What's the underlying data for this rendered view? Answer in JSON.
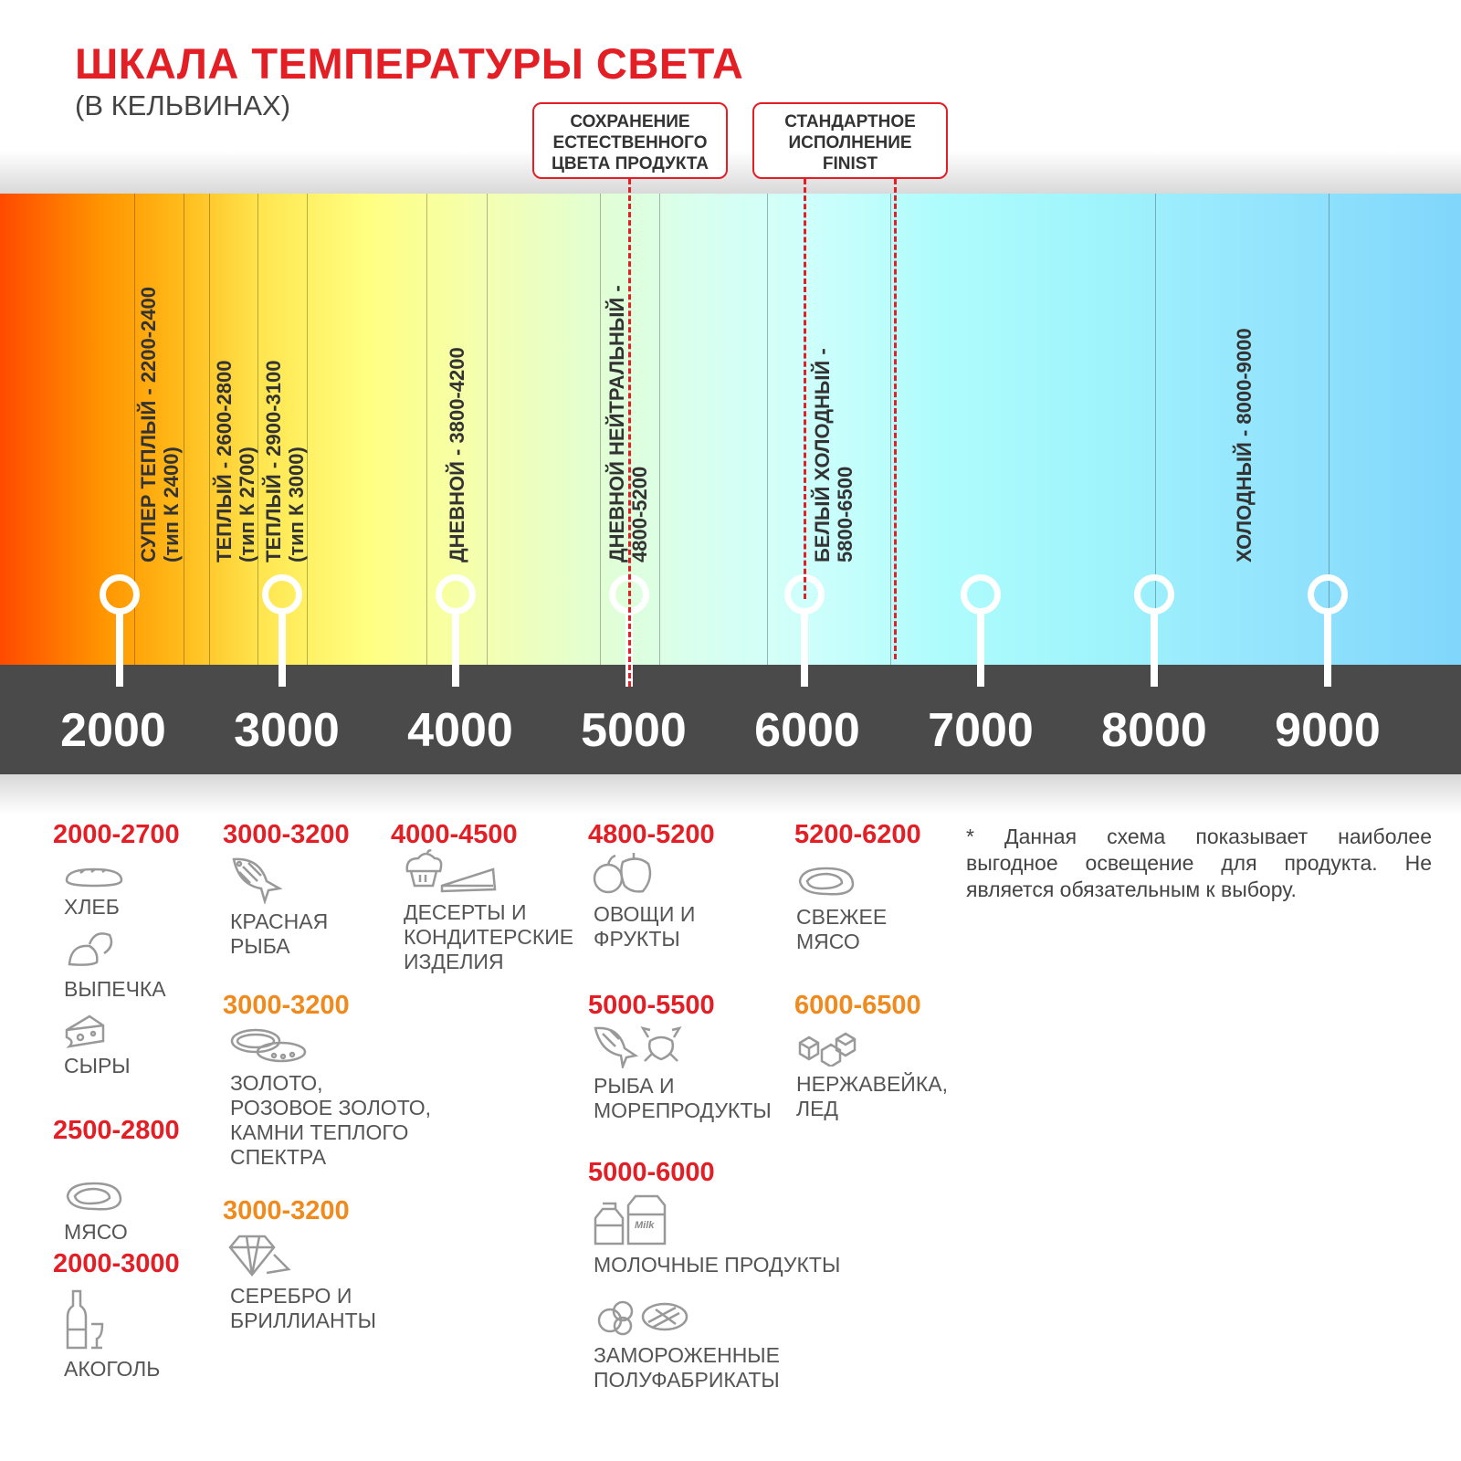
{
  "header": {
    "title": "ШКАЛА ТЕМПЕРАТУРЫ СВЕТА",
    "subtitle": "(В КЕЛЬВИНАХ)"
  },
  "callouts": [
    {
      "text": "СОХРАНЕНИЕ\nЕСТЕСТВЕННОГО\nЦВЕТА ПРОДУКТА"
    },
    {
      "text": "СТАНДАРТНОЕ\nИСПОЛНЕНИЕ\nFINIST"
    }
  ],
  "zones": [
    {
      "label": "СУПЕР ТЕПЛЫЙ - 2200-2400\n(тип К 2400)"
    },
    {
      "label": "ТЕПЛЫЙ - 2600-2800\n(тип К 2700)"
    },
    {
      "label": "ТЕПЛЫЙ - 2900-3100\n(тип К 3000)"
    },
    {
      "label": "ДНЕВНОЙ - 3800-4200"
    },
    {
      "label": "ДНЕВНОЙ НЕЙТРАЛЬНЫЙ -\n4800-5200"
    },
    {
      "label": "БЕЛЫЙ ХОЛОДНЫЙ -\n5800-6500"
    },
    {
      "label": "ХОЛОДНЫЙ - 8000-9000"
    }
  ],
  "scale": [
    "2000",
    "3000",
    "4000",
    "5000",
    "6000",
    "7000",
    "8000",
    "9000"
  ],
  "colors": {
    "accent": "#e31e24",
    "orange": "#f08a1c",
    "scale_bg": "#4a4a4a"
  },
  "products": {
    "c1": [
      {
        "range": "2000-2700",
        "items": [
          {
            "icon": "bread-icon",
            "label": "ХЛЕБ"
          },
          {
            "icon": "croissant-icon",
            "label": "ВЫПЕЧКА"
          },
          {
            "icon": "cheese-icon",
            "label": "СЫРЫ"
          }
        ]
      },
      {
        "range": "2500-2800",
        "items": [
          {
            "icon": "steak-icon",
            "label": "МЯСО"
          }
        ]
      },
      {
        "range": "2000-3000",
        "items": [
          {
            "icon": "bottle-icon",
            "label": "АКОГОЛЬ"
          }
        ]
      }
    ],
    "c2": [
      {
        "range": "3000-3200",
        "items": [
          {
            "icon": "fish-icon",
            "label": "КРАСНАЯ\nРЫБА"
          }
        ]
      },
      {
        "range": "3000-3200",
        "items": [
          {
            "icon": "rings-icon",
            "label": "ЗОЛОТО,\nРОЗОВОЕ ЗОЛОТО,\nКАМНИ ТЕПЛОГО\nСПЕКТРА"
          }
        ]
      },
      {
        "range": "3000-3200",
        "items": [
          {
            "icon": "diamond-icon",
            "label": "СЕРЕБРО И\nБРИЛЛИАНТЫ"
          }
        ]
      }
    ],
    "c3": [
      {
        "range": "4000-4500",
        "items": [
          {
            "icon": "cake-icon",
            "label": "ДЕСЕРТЫ И\nКОНДИТЕРСКИЕ\nИЗДЕЛИЯ"
          }
        ]
      }
    ],
    "c4": [
      {
        "range": "4800-5200",
        "items": [
          {
            "icon": "vegetables-icon",
            "label": "ОВОЩИ И\nФРУКТЫ"
          }
        ]
      },
      {
        "range": "5000-5500",
        "items": [
          {
            "icon": "seafood-icon",
            "label": "РЫБА И\nМОРЕПРОДУКТЫ"
          }
        ]
      },
      {
        "range": "5000-6000",
        "items": [
          {
            "icon": "milk-icon",
            "label": "МОЛОЧНЫЕ ПРОДУКТЫ",
            "milk": "Milk"
          },
          {
            "icon": "frozen-food-icon",
            "label": "ЗАМОРОЖЕННЫЕ\nПОЛУФАБРИКАТЫ"
          }
        ]
      }
    ],
    "c5": [
      {
        "range": "5200-6200",
        "items": [
          {
            "icon": "steak-icon",
            "label": "СВЕЖЕЕ\nМЯСО"
          }
        ]
      },
      {
        "range": "6000-6500",
        "items": [
          {
            "icon": "ice-icon",
            "label": "НЕРЖАВЕЙКА,\nЛЕД"
          }
        ]
      }
    ]
  },
  "note": "*  Данная схема показывает наиболее выгодное освещение для продукта. Не является обязательным к выбору."
}
